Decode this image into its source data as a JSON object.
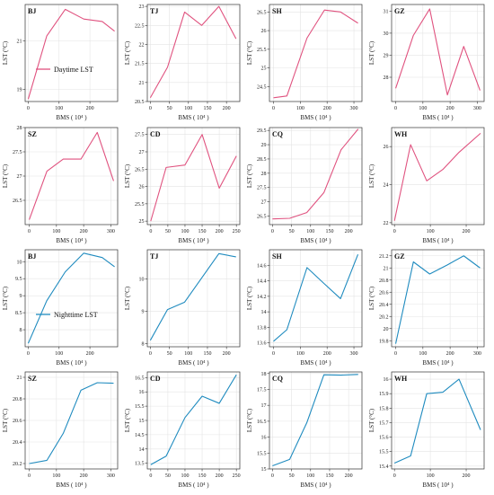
{
  "figure": {
    "xlabel": "BMS ( 10⁴ )",
    "ylabel": "LST (°C)",
    "day_color": "#e0527f",
    "night_color": "#1f8bbf",
    "legend_day": "Daytime LST",
    "legend_night": "Nighttime LST"
  },
  "chart_data": [
    {
      "type": "line",
      "city": "BJ",
      "series_name": "Daytime LST",
      "x": [
        0,
        60,
        120,
        180,
        240,
        280
      ],
      "y": [
        18.6,
        21.2,
        22.3,
        21.9,
        21.8,
        21.4
      ],
      "xlim": [
        -10,
        290
      ],
      "ylim": [
        18.5,
        22.5
      ],
      "xticks": [
        0,
        100,
        200
      ],
      "yticks": [
        19,
        21,
        23
      ]
    },
    {
      "type": "line",
      "city": "TJ",
      "x": [
        0,
        45,
        90,
        135,
        180,
        225
      ],
      "y": [
        20.6,
        21.4,
        22.85,
        22.5,
        23.0,
        22.15
      ],
      "xlim": [
        -8,
        235
      ],
      "ylim": [
        20.5,
        23.05
      ],
      "xticks": [
        0,
        50,
        100,
        150,
        200
      ],
      "yticks": [
        20.5,
        21.0,
        21.5,
        22.0,
        22.5,
        23.0
      ]
    },
    {
      "type": "line",
      "city": "SH",
      "x": [
        0,
        50,
        125,
        190,
        250,
        315
      ],
      "y": [
        24.2,
        24.25,
        25.8,
        26.55,
        26.5,
        26.2
      ],
      "xlim": [
        -15,
        330
      ],
      "ylim": [
        24.1,
        26.7
      ],
      "xticks": [
        0,
        100,
        200,
        300
      ],
      "yticks": [
        24.5,
        25.0,
        25.5,
        26.0,
        26.5
      ]
    },
    {
      "type": "line",
      "city": "GZ",
      "x": [
        0,
        65,
        125,
        190,
        250,
        310
      ],
      "y": [
        27.5,
        29.9,
        31.1,
        27.2,
        29.4,
        27.4
      ],
      "xlim": [
        -15,
        325
      ],
      "ylim": [
        26.9,
        31.3
      ],
      "xticks": [
        0,
        100,
        200,
        300
      ],
      "yticks": [
        28,
        29,
        30,
        31
      ]
    },
    {
      "type": "line",
      "city": "SZ",
      "x": [
        0,
        65,
        125,
        190,
        250,
        310
      ],
      "y": [
        26.1,
        27.1,
        27.35,
        27.35,
        27.9,
        26.9
      ],
      "xlim": [
        -15,
        325
      ],
      "ylim": [
        26.0,
        28.0
      ],
      "xticks": [
        0,
        100,
        200,
        300
      ],
      "yticks": [
        26.5,
        27.0,
        27.5,
        28.0
      ]
    },
    {
      "type": "line",
      "city": "CD",
      "x": [
        0,
        45,
        100,
        150,
        200,
        250
      ],
      "y": [
        25.0,
        26.55,
        26.62,
        27.5,
        25.95,
        26.88
      ],
      "xlim": [
        -10,
        260
      ],
      "ylim": [
        24.9,
        27.7
      ],
      "xticks": [
        0,
        50,
        100,
        150,
        200,
        250
      ],
      "yticks": [
        25.0,
        25.5,
        26.0,
        26.5,
        27.0,
        27.5
      ]
    },
    {
      "type": "line",
      "city": "CQ",
      "x": [
        0,
        45,
        90,
        135,
        180,
        225
      ],
      "y": [
        26.4,
        26.42,
        26.62,
        27.32,
        28.82,
        29.55
      ],
      "xlim": [
        -8,
        235
      ],
      "ylim": [
        26.2,
        29.6
      ],
      "xticks": [
        0,
        50,
        100,
        150,
        200
      ],
      "yticks": [
        26.5,
        27.0,
        27.5,
        28.0,
        28.5,
        29.0,
        29.5
      ]
    },
    {
      "type": "line",
      "city": "WH",
      "x": [
        0,
        45,
        90,
        135,
        180,
        240
      ],
      "y": [
        22.1,
        26.1,
        24.2,
        24.8,
        25.7,
        26.7
      ],
      "xlim": [
        -8,
        250
      ],
      "ylim": [
        21.9,
        27.0
      ],
      "xticks": [
        0,
        100,
        200
      ],
      "yticks": [
        22,
        24,
        26
      ]
    },
    {
      "type": "line",
      "city": "BJ",
      "series_name": "Nighttime LST",
      "x": [
        0,
        60,
        120,
        180,
        240,
        280
      ],
      "y": [
        7.6,
        8.85,
        9.7,
        10.25,
        10.12,
        9.85
      ],
      "xlim": [
        -10,
        290
      ],
      "ylim": [
        7.5,
        10.35
      ],
      "xticks": [
        0,
        100,
        200
      ],
      "yticks": [
        8.0,
        8.5,
        9.0,
        9.5,
        10.0
      ]
    },
    {
      "type": "line",
      "city": "TJ",
      "x": [
        0,
        45,
        90,
        135,
        180,
        225
      ],
      "y": [
        8.1,
        9.05,
        9.28,
        10.03,
        10.78,
        10.68
      ],
      "xlim": [
        -8,
        235
      ],
      "ylim": [
        7.9,
        10.9
      ],
      "xticks": [
        0,
        50,
        100,
        150,
        200
      ],
      "yticks": [
        8,
        9,
        10
      ]
    },
    {
      "type": "line",
      "city": "SH",
      "x": [
        0,
        50,
        125,
        190,
        250,
        315
      ],
      "y": [
        13.62,
        13.77,
        14.57,
        14.36,
        14.17,
        14.74
      ],
      "xlim": [
        -15,
        330
      ],
      "ylim": [
        13.55,
        14.8
      ],
      "xticks": [
        0,
        100,
        200,
        300
      ],
      "yticks": [
        13.6,
        13.8,
        14.0,
        14.2,
        14.4,
        14.6
      ]
    },
    {
      "type": "line",
      "city": "GZ",
      "x": [
        0,
        65,
        125,
        190,
        250,
        310
      ],
      "y": [
        19.75,
        21.1,
        20.9,
        21.05,
        21.2,
        21.0
      ],
      "xlim": [
        -15,
        325
      ],
      "ylim": [
        19.7,
        21.3
      ],
      "xticks": [
        0,
        100,
        200,
        300
      ],
      "yticks": [
        19.8,
        20.0,
        20.2,
        20.4,
        20.6,
        20.8,
        21.0,
        21.2
      ]
    },
    {
      "type": "line",
      "city": "SZ",
      "x": [
        0,
        65,
        125,
        190,
        250,
        310
      ],
      "y": [
        20.2,
        20.23,
        20.48,
        20.88,
        20.95,
        20.945
      ],
      "xlim": [
        -15,
        325
      ],
      "ylim": [
        20.15,
        21.05
      ],
      "xticks": [
        0,
        100,
        200,
        300
      ],
      "yticks": [
        20.2,
        20.4,
        20.6,
        20.8,
        21.0
      ]
    },
    {
      "type": "line",
      "city": "CD",
      "x": [
        0,
        45,
        100,
        150,
        200,
        250
      ],
      "y": [
        13.45,
        13.75,
        15.1,
        15.85,
        15.6,
        16.6
      ],
      "xlim": [
        -10,
        260
      ],
      "ylim": [
        13.3,
        16.7
      ],
      "xticks": [
        0,
        50,
        100,
        150,
        200,
        250
      ],
      "yticks": [
        13.5,
        14.0,
        14.5,
        15.0,
        15.5,
        16.0,
        16.5
      ]
    },
    {
      "type": "line",
      "city": "CQ",
      "x": [
        0,
        45,
        90,
        135,
        180,
        225
      ],
      "y": [
        15.1,
        15.3,
        16.45,
        17.96,
        17.95,
        17.97
      ],
      "xlim": [
        -8,
        235
      ],
      "ylim": [
        15.0,
        18.05
      ],
      "xticks": [
        0,
        50,
        100,
        150,
        200
      ],
      "yticks": [
        15.0,
        15.5,
        16.0,
        16.5,
        17.0,
        17.5,
        18.0
      ]
    },
    {
      "type": "line",
      "city": "WH",
      "x": [
        0,
        45,
        90,
        135,
        180,
        240
      ],
      "y": [
        15.42,
        15.47,
        15.9,
        15.91,
        16.0,
        15.65
      ],
      "xlim": [
        -8,
        250
      ],
      "ylim": [
        15.38,
        16.05
      ],
      "xticks": [
        0,
        100,
        200
      ],
      "yticks": [
        15.4,
        15.5,
        15.6,
        15.7,
        15.8,
        15.9,
        16.0
      ]
    }
  ]
}
